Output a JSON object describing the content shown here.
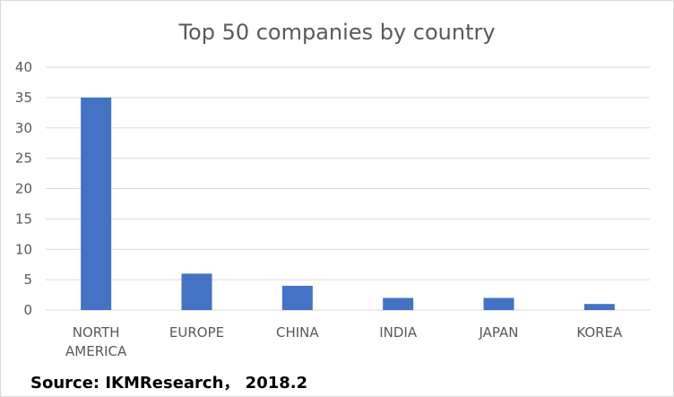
{
  "chart_data": {
    "type": "bar",
    "title": "Top 50 companies by country",
    "categories": [
      [
        "NORTH",
        "AMERICA"
      ],
      [
        "EUROPE"
      ],
      [
        "CHINA"
      ],
      [
        "INDIA"
      ],
      [
        "JAPAN"
      ],
      [
        "KOREA"
      ]
    ],
    "values": [
      35,
      6,
      4,
      2,
      2,
      1
    ],
    "ylim": [
      0,
      40
    ],
    "yticks": [
      "0",
      "5",
      "10",
      "15",
      "20",
      "25",
      "30",
      "35",
      "40"
    ],
    "grid": true,
    "legend": "none",
    "bar_color": "#4472C4",
    "grid_color": "#d9d9d9"
  },
  "source": "Source: IKMResearch， 2018.2"
}
